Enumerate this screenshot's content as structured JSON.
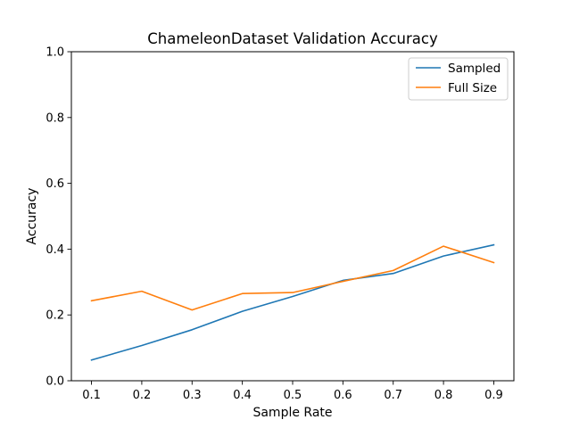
{
  "chart_data": {
    "type": "line",
    "title": "ChameleonDataset Validation Accuracy",
    "xlabel": "Sample Rate",
    "ylabel": "Accuracy",
    "x": [
      0.1,
      0.2,
      0.3,
      0.4,
      0.5,
      0.6,
      0.7,
      0.8,
      0.9
    ],
    "x_ticks": [
      "0.1",
      "0.2",
      "0.3",
      "0.4",
      "0.5",
      "0.6",
      "0.7",
      "0.8",
      "0.9"
    ],
    "y_ticks": [
      "0.0",
      "0.2",
      "0.4",
      "0.6",
      "0.8",
      "1.0"
    ],
    "xlim": [
      0.06,
      0.94
    ],
    "ylim": [
      0,
      1
    ],
    "grid": false,
    "legend_position": "top-right",
    "series": [
      {
        "name": "Sampled",
        "color": "#1f77b4",
        "values": [
          0.063,
          0.107,
          0.155,
          0.211,
          0.256,
          0.305,
          0.326,
          0.379,
          0.413
        ]
      },
      {
        "name": "Full Size",
        "color": "#ff7f0e",
        "values": [
          0.243,
          0.272,
          0.215,
          0.265,
          0.268,
          0.302,
          0.335,
          0.409,
          0.359
        ]
      }
    ]
  }
}
